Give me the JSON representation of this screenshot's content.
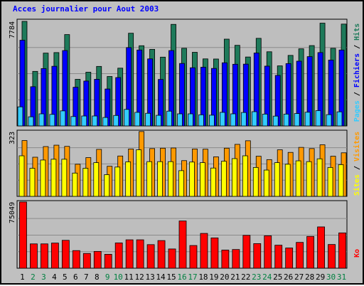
{
  "chart_data": {
    "type": "bar",
    "title": "Acces journalier pour Aout 2003",
    "categories": [
      "1",
      "2",
      "3",
      "4",
      "5",
      "6",
      "7",
      "8",
      "9",
      "10",
      "11",
      "12",
      "13",
      "14",
      "15",
      "16",
      "17",
      "18",
      "19",
      "20",
      "21",
      "22",
      "23",
      "24",
      "25",
      "26",
      "27",
      "28",
      "29",
      "30",
      "31"
    ],
    "weekend_days": [
      "2",
      "3",
      "9",
      "10",
      "16",
      "17",
      "23",
      "24",
      "30",
      "31"
    ],
    "panels": [
      {
        "id": "top",
        "max_label": "7784",
        "max": 7784,
        "series": [
          {
            "name": "Hits",
            "color": "#1e7a5a",
            "values": [
              7784,
              4060,
              5420,
              5460,
              6800,
              3470,
              4000,
              4430,
              3680,
              4300,
              6900,
              5970,
              5700,
              5120,
              7560,
              5780,
              5480,
              4990,
              4980,
              6460,
              6000,
              5130,
              6520,
              5520,
              4470,
              5250,
              5740,
              5980,
              7650,
              5780,
              7580
            ]
          },
          {
            "name": "Fichiers",
            "color": "#0000ff",
            "values": [
              6380,
              2920,
              4270,
              4440,
              5610,
              2880,
              3340,
              3470,
              2750,
              3600,
              5830,
              5650,
              4990,
              3460,
              5610,
              4650,
              4330,
              4370,
              4280,
              4700,
              4590,
              4600,
              5430,
              4450,
              3760,
              4640,
              4820,
              5160,
              5460,
              4900,
              5650
            ]
          },
          {
            "name": "Pages",
            "color": "#33ccff",
            "values": [
              1420,
              680,
              900,
              860,
              1120,
              700,
              740,
              740,
              630,
              780,
              1230,
              1010,
              940,
              790,
              1100,
              900,
              900,
              830,
              800,
              1010,
              900,
              1000,
              1060,
              880,
              730,
              880,
              920,
              1020,
              1140,
              840,
              1050
            ]
          }
        ]
      },
      {
        "id": "mid",
        "max_label": "323",
        "max": 323,
        "series": [
          {
            "name": "Visites",
            "color": "#ff9900",
            "values": [
              278,
              195,
              248,
              255,
              249,
              160,
              193,
              234,
              150,
              201,
              236,
              323,
              238,
              240,
              241,
              178,
              236,
              235,
              197,
              240,
              259,
              277,
              200,
              183,
              232,
              219,
              244,
              238,
              257,
              200,
              217
            ]
          },
          {
            "name": "Sites",
            "color": "#ffff00",
            "values": [
              202,
              140,
              181,
              185,
              185,
              116,
              140,
              168,
              108,
              146,
              172,
              232,
              173,
              173,
              173,
              128,
              171,
              168,
              141,
              175,
              188,
              202,
              144,
              131,
              168,
              160,
              177,
              173,
              187,
              144,
              158
            ]
          }
        ]
      },
      {
        "id": "bot",
        "max_label": "75049",
        "max": 75049,
        "series": [
          {
            "name": "Ko",
            "color": "#ff0000",
            "values": [
              75049,
              27590,
              27590,
              28500,
              31610,
              19980,
              16730,
              19050,
              15780,
              28660,
              32200,
              32200,
              26750,
              31320,
              21830,
              53530,
              25730,
              39440,
              34360,
              20580,
              21200,
              37260,
              27890,
              36760,
              26110,
              22920,
              29280,
              36060,
              46800,
              26890,
              40020
            ]
          }
        ]
      }
    ],
    "legends": {
      "top": [
        "Pages",
        "Fichiers",
        "Hits"
      ],
      "mid": [
        "Sites",
        "Visites"
      ],
      "bot": [
        "Ko"
      ]
    },
    "grid": true
  },
  "colors": {
    "title": "#0000ff",
    "weekday_label": "#000000",
    "weekend_label": "#008040",
    "panel_bg": "#bebebe",
    "grid": "#8a8a8a"
  }
}
